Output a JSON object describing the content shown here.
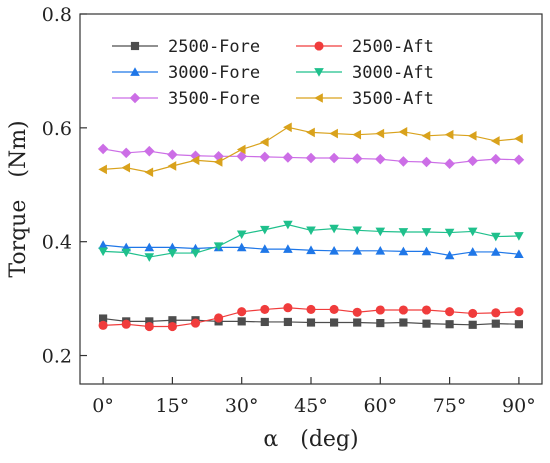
{
  "chart_data": {
    "type": "line",
    "xlabel": "α　(deg)",
    "ylabel": "Torque　(Nm)",
    "xlim": [
      -5,
      95
    ],
    "ylim": [
      0.15,
      0.8
    ],
    "xticks": [
      0,
      15,
      30,
      45,
      60,
      75,
      90
    ],
    "xtick_labels": [
      "0°",
      "15°",
      "30°",
      "45°",
      "60°",
      "75°",
      "90°"
    ],
    "yticks": [
      0.2,
      0.4,
      0.6,
      0.8
    ],
    "ytick_labels": [
      "0.2",
      "0.4",
      "0.6",
      "0.8"
    ],
    "grid": false,
    "legend_position": "top",
    "x": [
      0,
      5,
      10,
      15,
      20,
      25,
      30,
      35,
      40,
      45,
      50,
      55,
      60,
      65,
      70,
      75,
      80,
      85,
      90
    ],
    "series": [
      {
        "name": "2500-Fore",
        "color": "#4d4d4d",
        "marker": "square",
        "values": [
          0.265,
          0.26,
          0.26,
          0.262,
          0.262,
          0.26,
          0.26,
          0.259,
          0.259,
          0.258,
          0.258,
          0.258,
          0.257,
          0.258,
          0.256,
          0.255,
          0.254,
          0.256,
          0.255
        ]
      },
      {
        "name": "2500-Aft",
        "color": "#f03c3c",
        "marker": "circle",
        "values": [
          0.253,
          0.255,
          0.251,
          0.251,
          0.257,
          0.266,
          0.277,
          0.281,
          0.284,
          0.281,
          0.281,
          0.276,
          0.28,
          0.28,
          0.28,
          0.277,
          0.274,
          0.275,
          0.277
        ]
      },
      {
        "name": "3000-Fore",
        "color": "#1f77e8",
        "marker": "triangle-up",
        "values": [
          0.394,
          0.39,
          0.39,
          0.39,
          0.388,
          0.39,
          0.39,
          0.387,
          0.387,
          0.385,
          0.384,
          0.384,
          0.384,
          0.383,
          0.383,
          0.376,
          0.382,
          0.382,
          0.378
        ]
      },
      {
        "name": "3000-Aft",
        "color": "#1fc08c",
        "marker": "triangle-down",
        "values": [
          0.383,
          0.381,
          0.373,
          0.38,
          0.38,
          0.392,
          0.413,
          0.421,
          0.43,
          0.42,
          0.423,
          0.42,
          0.418,
          0.417,
          0.417,
          0.416,
          0.418,
          0.409,
          0.41
        ]
      },
      {
        "name": "3500-Fore",
        "color": "#cc6ee6",
        "marker": "diamond",
        "values": [
          0.563,
          0.556,
          0.559,
          0.553,
          0.551,
          0.55,
          0.55,
          0.549,
          0.548,
          0.547,
          0.547,
          0.546,
          0.545,
          0.541,
          0.54,
          0.537,
          0.542,
          0.545,
          0.544
        ]
      },
      {
        "name": "3500-Aft",
        "color": "#d9a21c",
        "marker": "triangle-left",
        "values": [
          0.527,
          0.53,
          0.522,
          0.533,
          0.543,
          0.54,
          0.562,
          0.575,
          0.601,
          0.592,
          0.59,
          0.588,
          0.59,
          0.593,
          0.586,
          0.588,
          0.586,
          0.577,
          0.581
        ]
      }
    ]
  }
}
